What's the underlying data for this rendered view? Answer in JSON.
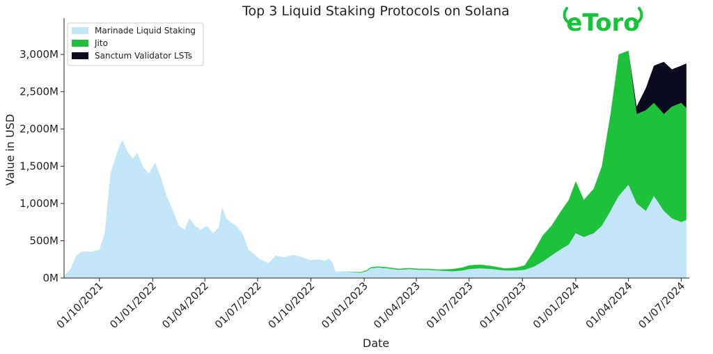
{
  "chart_data": {
    "type": "area",
    "stacked": true,
    "title": "Top 3 Liquid Staking Protocols on Solana",
    "xlabel": "Date",
    "ylabel": "Value in USD",
    "ylim": [
      0,
      3450
    ],
    "y_unit": "M",
    "yticks": [
      0,
      500,
      1000,
      1500,
      2000,
      2500,
      3000
    ],
    "ytick_labels": [
      "0M",
      "500M",
      "1,000M",
      "1,500M",
      "2,000M",
      "2,500M",
      "3,000M"
    ],
    "xlim": [
      "2021-08-01",
      "2024-07-15"
    ],
    "xticks": [
      "2021-10-01",
      "2022-01-01",
      "2022-04-01",
      "2022-07-01",
      "2022-10-01",
      "2023-01-01",
      "2023-04-01",
      "2023-07-01",
      "2023-10-01",
      "2024-01-01",
      "2024-04-01",
      "2024-07-01"
    ],
    "xtick_labels": [
      "01/10/2021",
      "01/01/2022",
      "01/04/2022",
      "01/07/2022",
      "01/10/2022",
      "01/01/2023",
      "01/04/2023",
      "01/07/2023",
      "01/10/2023",
      "01/01/2024",
      "01/04/2024",
      "01/07/2024"
    ],
    "legend_position": "top-left",
    "grid": false,
    "series": [
      {
        "name": "Marinade Liquid Staking",
        "color": "#c2e5f8",
        "points": [
          [
            "2021-08-01",
            30
          ],
          [
            "2021-08-12",
            120
          ],
          [
            "2021-08-22",
            300
          ],
          [
            "2021-09-01",
            360
          ],
          [
            "2021-09-15",
            350
          ],
          [
            "2021-10-01",
            380
          ],
          [
            "2021-10-10",
            600
          ],
          [
            "2021-10-20",
            1400
          ],
          [
            "2021-10-28",
            1600
          ],
          [
            "2021-11-05",
            1780
          ],
          [
            "2021-11-10",
            1850
          ],
          [
            "2021-11-18",
            1700
          ],
          [
            "2021-11-28",
            1600
          ],
          [
            "2021-12-05",
            1680
          ],
          [
            "2021-12-15",
            1500
          ],
          [
            "2021-12-25",
            1400
          ],
          [
            "2022-01-05",
            1550
          ],
          [
            "2022-01-15",
            1350
          ],
          [
            "2022-01-25",
            1100
          ],
          [
            "2022-02-05",
            900
          ],
          [
            "2022-02-15",
            700
          ],
          [
            "2022-02-25",
            650
          ],
          [
            "2022-03-05",
            800
          ],
          [
            "2022-03-15",
            700
          ],
          [
            "2022-03-25",
            650
          ],
          [
            "2022-04-05",
            700
          ],
          [
            "2022-04-15",
            600
          ],
          [
            "2022-04-25",
            680
          ],
          [
            "2022-05-01",
            950
          ],
          [
            "2022-05-08",
            800
          ],
          [
            "2022-05-15",
            750
          ],
          [
            "2022-05-25",
            700
          ],
          [
            "2022-06-05",
            600
          ],
          [
            "2022-06-15",
            380
          ],
          [
            "2022-06-25",
            320
          ],
          [
            "2022-07-05",
            250
          ],
          [
            "2022-07-20",
            200
          ],
          [
            "2022-08-01",
            300
          ],
          [
            "2022-08-15",
            280
          ],
          [
            "2022-09-01",
            310
          ],
          [
            "2022-09-15",
            280
          ],
          [
            "2022-10-01",
            240
          ],
          [
            "2022-10-15",
            250
          ],
          [
            "2022-10-25",
            230
          ],
          [
            "2022-11-01",
            260
          ],
          [
            "2022-11-08",
            200
          ],
          [
            "2022-11-12",
            90
          ],
          [
            "2022-11-25",
            90
          ],
          [
            "2022-12-10",
            80
          ],
          [
            "2022-12-25",
            70
          ],
          [
            "2023-01-05",
            90
          ],
          [
            "2023-01-12",
            130
          ],
          [
            "2023-01-25",
            140
          ],
          [
            "2023-02-10",
            130
          ],
          [
            "2023-03-01",
            110
          ],
          [
            "2023-03-20",
            120
          ],
          [
            "2023-04-05",
            110
          ],
          [
            "2023-04-20",
            110
          ],
          [
            "2023-05-10",
            100
          ],
          [
            "2023-06-01",
            90
          ],
          [
            "2023-06-20",
            100
          ],
          [
            "2023-07-01",
            120
          ],
          [
            "2023-07-20",
            130
          ],
          [
            "2023-08-10",
            120
          ],
          [
            "2023-09-01",
            100
          ],
          [
            "2023-09-20",
            100
          ],
          [
            "2023-10-05",
            110
          ],
          [
            "2023-10-20",
            150
          ],
          [
            "2023-11-05",
            220
          ],
          [
            "2023-11-20",
            300
          ],
          [
            "2023-12-05",
            380
          ],
          [
            "2023-12-20",
            450
          ],
          [
            "2024-01-01",
            600
          ],
          [
            "2024-01-15",
            550
          ],
          [
            "2024-02-01",
            600
          ],
          [
            "2024-02-15",
            700
          ],
          [
            "2024-03-01",
            900
          ],
          [
            "2024-03-15",
            1100
          ],
          [
            "2024-04-01",
            1250
          ],
          [
            "2024-04-15",
            1000
          ],
          [
            "2024-05-01",
            900
          ],
          [
            "2024-05-15",
            1100
          ],
          [
            "2024-06-01",
            900
          ],
          [
            "2024-06-15",
            800
          ],
          [
            "2024-07-01",
            750
          ],
          [
            "2024-07-10",
            780
          ]
        ]
      },
      {
        "name": "Jito",
        "color": "#1ec13a",
        "points": [
          [
            "2022-11-25",
            0
          ],
          [
            "2022-12-10",
            5
          ],
          [
            "2023-01-12",
            15
          ],
          [
            "2023-03-01",
            15
          ],
          [
            "2023-05-10",
            15
          ],
          [
            "2023-07-01",
            50
          ],
          [
            "2023-07-20",
            50
          ],
          [
            "2023-08-10",
            40
          ],
          [
            "2023-09-01",
            30
          ],
          [
            "2023-09-20",
            40
          ],
          [
            "2023-10-05",
            60
          ],
          [
            "2023-10-20",
            200
          ],
          [
            "2023-11-05",
            350
          ],
          [
            "2023-11-20",
            400
          ],
          [
            "2023-12-05",
            500
          ],
          [
            "2023-12-20",
            600
          ],
          [
            "2024-01-01",
            700
          ],
          [
            "2024-01-15",
            500
          ],
          [
            "2024-02-01",
            600
          ],
          [
            "2024-02-15",
            800
          ],
          [
            "2024-03-01",
            1300
          ],
          [
            "2024-03-15",
            1900
          ],
          [
            "2024-04-01",
            1800
          ],
          [
            "2024-04-15",
            1200
          ],
          [
            "2024-05-01",
            1350
          ],
          [
            "2024-05-15",
            1250
          ],
          [
            "2024-06-01",
            1300
          ],
          [
            "2024-06-15",
            1500
          ],
          [
            "2024-07-01",
            1600
          ],
          [
            "2024-07-10",
            1500
          ]
        ]
      },
      {
        "name": "Sanctum Validator LSTs",
        "color": "#0b0b20",
        "points": [
          [
            "2024-04-01",
            0
          ],
          [
            "2024-04-15",
            100
          ],
          [
            "2024-05-01",
            300
          ],
          [
            "2024-05-15",
            500
          ],
          [
            "2024-06-01",
            700
          ],
          [
            "2024-06-15",
            500
          ],
          [
            "2024-07-01",
            500
          ],
          [
            "2024-07-10",
            600
          ]
        ]
      }
    ]
  },
  "logo": {
    "text": "eToro",
    "color": "#13c636"
  }
}
